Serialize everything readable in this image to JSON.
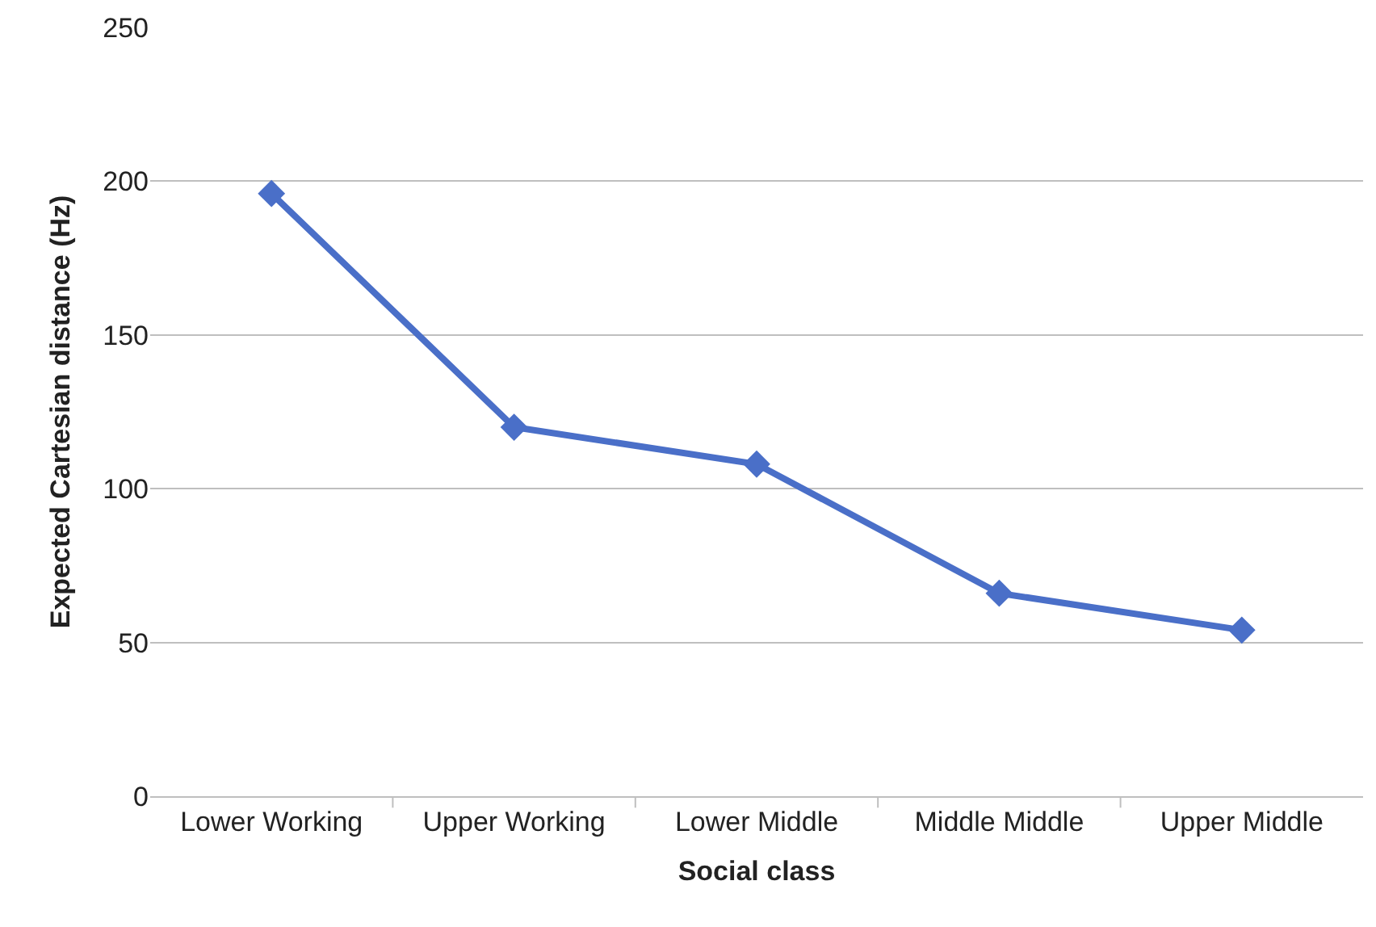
{
  "chart_data": {
    "type": "line",
    "xlabel": "Social class",
    "ylabel": "Expected Cartesian distance (Hz)",
    "categories": [
      "Lower Working",
      "Upper Working",
      "Lower Middle",
      "Middle Middle",
      "Upper Middle"
    ],
    "series": [
      {
        "color": "#4a6fc8",
        "values": [
          196,
          120,
          108,
          66,
          54
        ]
      }
    ],
    "ylim": [
      0,
      250
    ],
    "yticks": [
      0,
      50,
      100,
      150,
      200,
      250
    ],
    "grid": "y",
    "marker": "diamond",
    "line_style": "solid"
  }
}
